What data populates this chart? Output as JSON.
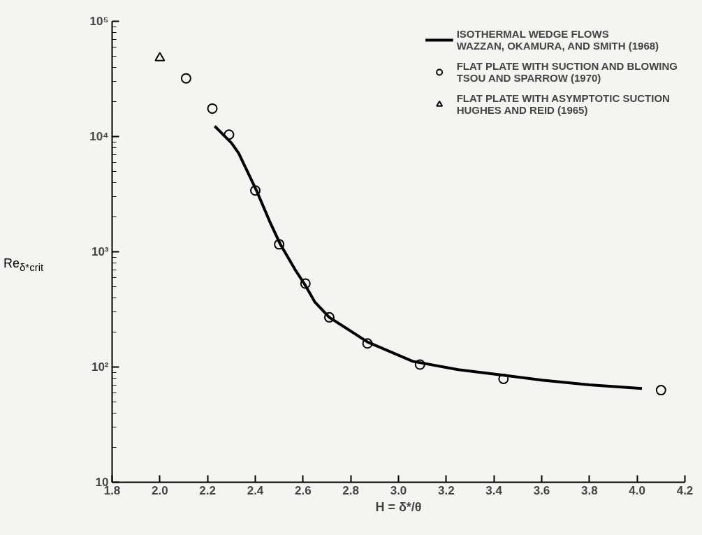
{
  "chart_data": {
    "type": "scatter",
    "xlabel": "H = δ*/θ",
    "ylabel": "Re$_{δ*crit}$",
    "log": "y",
    "grid": false,
    "legend": "top right",
    "xlim": [
      1.8,
      4.2
    ],
    "xticks": [
      1.8,
      {
        "value": 2,
        "label": "2.0"
      },
      2.2,
      2.4,
      2.6,
      2.8,
      {
        "value": 3,
        "label": "3.0"
      },
      3.2,
      3.4,
      3.6,
      3.8,
      {
        "value": 4,
        "label": "4.0"
      },
      4.2
    ],
    "ylim": [
      10,
      100000
    ],
    "yticks": [
      10,
      {
        "value": 100,
        "label": "10²"
      },
      {
        "value": 1000,
        "label": "10³"
      },
      {
        "value": 10000,
        "label": "10⁴"
      },
      {
        "value": 100000,
        "label": "10⁵"
      }
    ],
    "series": [
      {
        "name": "ISOTHERMAL WEDGE FLOWS\nWAZZAN, OKAMURA, AND SMITH (1968)",
        "type": "line",
        "color": "#000000",
        "marker": "none",
        "line_style": "solid",
        "x": [
          2.23,
          2.3,
          2.33,
          2.405,
          2.46,
          2.505,
          2.565,
          2.61,
          2.65,
          2.71,
          2.87,
          3.06,
          3.25,
          3.44,
          3.6,
          3.8,
          4.02
        ],
        "values": [
          12300,
          8800,
          7200,
          3400,
          1840,
          1160,
          710,
          510,
          365,
          270,
          165,
          112,
          95,
          85,
          77,
          70,
          65
        ]
      },
      {
        "name": "FLAT PLATE WITH SUCTION AND BLOWING\nTSOU AND SPARROW (1970)",
        "color": "#000000",
        "marker": "circle",
        "x": [
          2.11,
          2.22,
          2.29,
          2.4,
          2.5,
          2.61,
          2.71,
          2.87,
          3.09,
          3.44,
          4.1
        ],
        "values": [
          32000,
          17500,
          10400,
          3400,
          1160,
          530,
          270,
          160,
          105,
          79,
          63
        ]
      },
      {
        "name": "FLAT PLATE WITH ASYMPTOTIC SUCTION\nHUGHES AND REID (1965)",
        "color": "#000000",
        "marker": "triangle",
        "x": [
          2.0
        ],
        "values": [
          48000
        ]
      }
    ]
  }
}
